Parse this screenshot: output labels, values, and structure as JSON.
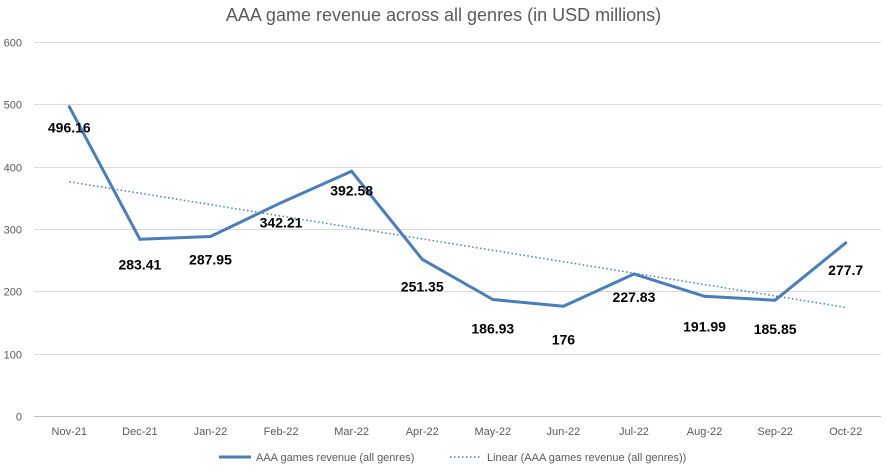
{
  "chart_data": {
    "type": "line",
    "title": "AAA game revenue across all genres (in USD millions)",
    "categories": [
      "Nov-21",
      "Dec-21",
      "Jan-22",
      "Feb-22",
      "Mar-22",
      "Apr-22",
      "May-22",
      "Jun-22",
      "Jul-22",
      "Aug-22",
      "Sep-22",
      "Oct-22"
    ],
    "series": [
      {
        "name": "AAA games revenue (all genres)",
        "values": [
          496.16,
          283.41,
          287.95,
          342.21,
          392.58,
          251.35,
          186.93,
          176,
          227.83,
          191.99,
          185.85,
          277.7
        ],
        "data_labels": [
          "496.16",
          "283.41",
          "287.95",
          "342.21",
          "392.58",
          "251.35",
          "186.93",
          "176",
          "227.83",
          "191.99",
          "185.85",
          "277.7"
        ],
        "color": "#4a7ebb",
        "line_style": "solid"
      },
      {
        "name": "Linear (AAA games revenue (all genres))",
        "type": "trendline-linear",
        "color": "#4a7ebb",
        "line_style": "dotted"
      }
    ],
    "ylim": [
      0,
      600
    ],
    "yticks": [
      0,
      100,
      200,
      300,
      400,
      500,
      600
    ],
    "xlabel": "",
    "ylabel": "",
    "grid": true,
    "legend_position": "bottom"
  }
}
